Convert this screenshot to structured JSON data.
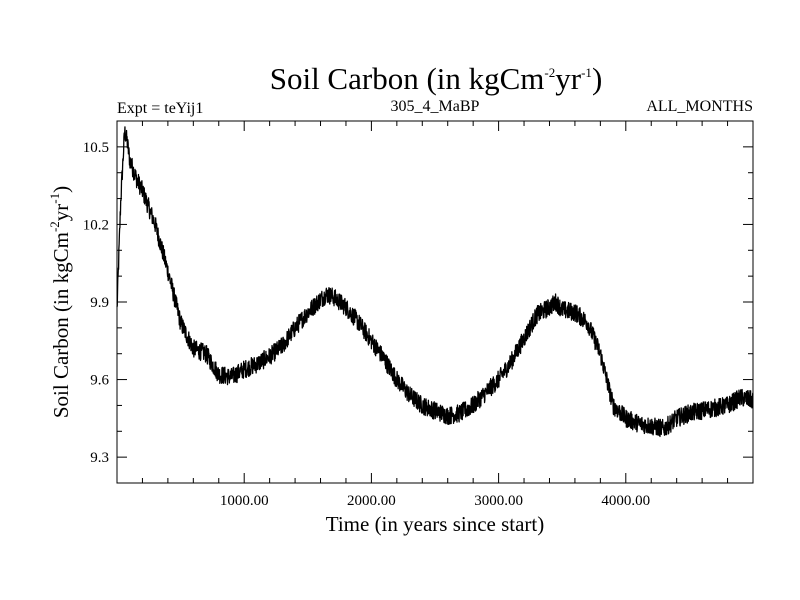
{
  "chart_data": {
    "type": "line",
    "title": {
      "pre": "Soil Carbon (in kgCm",
      "sup1": "-2",
      "mid": "yr",
      "sup2": "-1",
      "post": ")"
    },
    "subtitle_left": "Expt = teYij1",
    "subtitle_center": "305_4_MaBP",
    "subtitle_right": "ALL_MONTHS",
    "xlabel": "Time (in years since start)",
    "ylabel": {
      "pre": "Soil Carbon (in kgCm",
      "sup1": "-2",
      "mid": "yr",
      "sup2": "-1",
      "post": ")"
    },
    "xlim": [
      0,
      5000
    ],
    "ylim": [
      9.2,
      10.6
    ],
    "xticks": [
      1000,
      2000,
      3000,
      4000
    ],
    "xtick_labels": [
      "1000.00",
      "2000.00",
      "3000.00",
      "4000.00"
    ],
    "yticks": [
      9.3,
      9.6,
      9.9,
      10.2,
      10.5
    ],
    "ytick_labels": [
      "9.3",
      "9.6",
      "9.9",
      "10.2",
      "10.5"
    ],
    "series": [
      {
        "name": "Soil Carbon",
        "color": "#000000",
        "noise_amplitude": 0.035,
        "x": [
          0,
          30,
          60,
          80,
          100,
          150,
          200,
          300,
          400,
          500,
          600,
          700,
          800,
          900,
          1000,
          1100,
          1200,
          1300,
          1400,
          1500,
          1600,
          1650,
          1700,
          1800,
          1900,
          2000,
          2100,
          2200,
          2300,
          2400,
          2500,
          2600,
          2700,
          2800,
          2900,
          3000,
          3100,
          3200,
          3300,
          3400,
          3450,
          3500,
          3600,
          3700,
          3800,
          3900,
          4000,
          4100,
          4200,
          4300,
          4400,
          4500,
          4600,
          4700,
          4800,
          4900,
          5000
        ],
        "y": [
          9.87,
          10.3,
          10.56,
          10.52,
          10.45,
          10.38,
          10.33,
          10.2,
          10.02,
          9.82,
          9.72,
          9.7,
          9.62,
          9.61,
          9.64,
          9.66,
          9.69,
          9.73,
          9.8,
          9.86,
          9.91,
          9.93,
          9.92,
          9.88,
          9.82,
          9.75,
          9.68,
          9.6,
          9.54,
          9.5,
          9.48,
          9.46,
          9.47,
          9.5,
          9.55,
          9.6,
          9.67,
          9.76,
          9.85,
          9.88,
          9.9,
          9.87,
          9.86,
          9.82,
          9.7,
          9.5,
          9.45,
          9.43,
          9.42,
          9.41,
          9.45,
          9.47,
          9.48,
          9.49,
          9.5,
          9.53,
          9.52
        ]
      }
    ]
  }
}
